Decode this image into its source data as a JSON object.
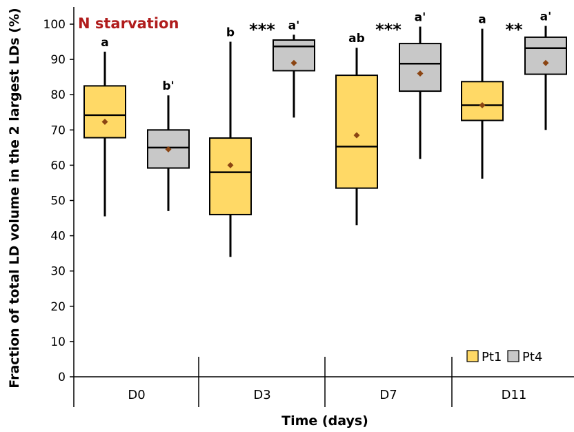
{
  "chart_data": {
    "type": "box",
    "title": "N starvation",
    "title_color": "#b01c1c",
    "xlabel": "Time (days)",
    "ylabel": "Fraction of total LD volume in the 2 largest LDs (%)",
    "ylim": [
      0,
      100
    ],
    "yticks": [
      0,
      10,
      20,
      30,
      40,
      50,
      60,
      70,
      80,
      90,
      100
    ],
    "ytick_labels": [
      "0",
      "10",
      "20",
      "30",
      "40",
      "50",
      "60",
      "70",
      "80",
      "90",
      "100"
    ],
    "grid": false,
    "legend_position": "bottom-right",
    "categories": [
      "D0",
      "D3",
      "D7",
      "D11"
    ],
    "series": [
      {
        "name": "Pt1",
        "color": "#ffd966",
        "mean_marker_color": "#8b4513",
        "boxes": [
          {
            "min": 45.5,
            "q1": 67.8,
            "median": 74.2,
            "q3": 82.5,
            "max": 92.2,
            "mean": 72.3,
            "letter": "a"
          },
          {
            "min": 34,
            "q1": 46,
            "median": 58,
            "q3": 67.7,
            "max": 95,
            "mean": 60,
            "letter": "b"
          },
          {
            "min": 43,
            "q1": 53.5,
            "median": 65.3,
            "q3": 85.5,
            "max": 93.3,
            "mean": 68.5,
            "letter": "ab"
          },
          {
            "min": 56.2,
            "q1": 72.7,
            "median": 77,
            "q3": 83.7,
            "max": 98.7,
            "mean": 77,
            "letter": "a"
          }
        ]
      },
      {
        "name": "Pt4",
        "color": "#c8c8c8",
        "mean_marker_color": "#8b4513",
        "boxes": [
          {
            "min": 47,
            "q1": 59.2,
            "median": 65,
            "q3": 70,
            "max": 79.8,
            "mean": 64.5,
            "letter": "b'"
          },
          {
            "min": 73.5,
            "q1": 86.8,
            "median": 93.7,
            "q3": 95.5,
            "max": 97,
            "mean": 89,
            "letter": "a'"
          },
          {
            "min": 61.8,
            "q1": 81,
            "median": 88.8,
            "q3": 94.5,
            "max": 99.3,
            "mean": 86,
            "letter": "a'"
          },
          {
            "min": 70,
            "q1": 85.8,
            "median": 93.2,
            "q3": 96.3,
            "max": 99.5,
            "mean": 89,
            "letter": "a'"
          }
        ]
      }
    ],
    "significance": [
      "",
      "***",
      "***",
      "**"
    ]
  }
}
